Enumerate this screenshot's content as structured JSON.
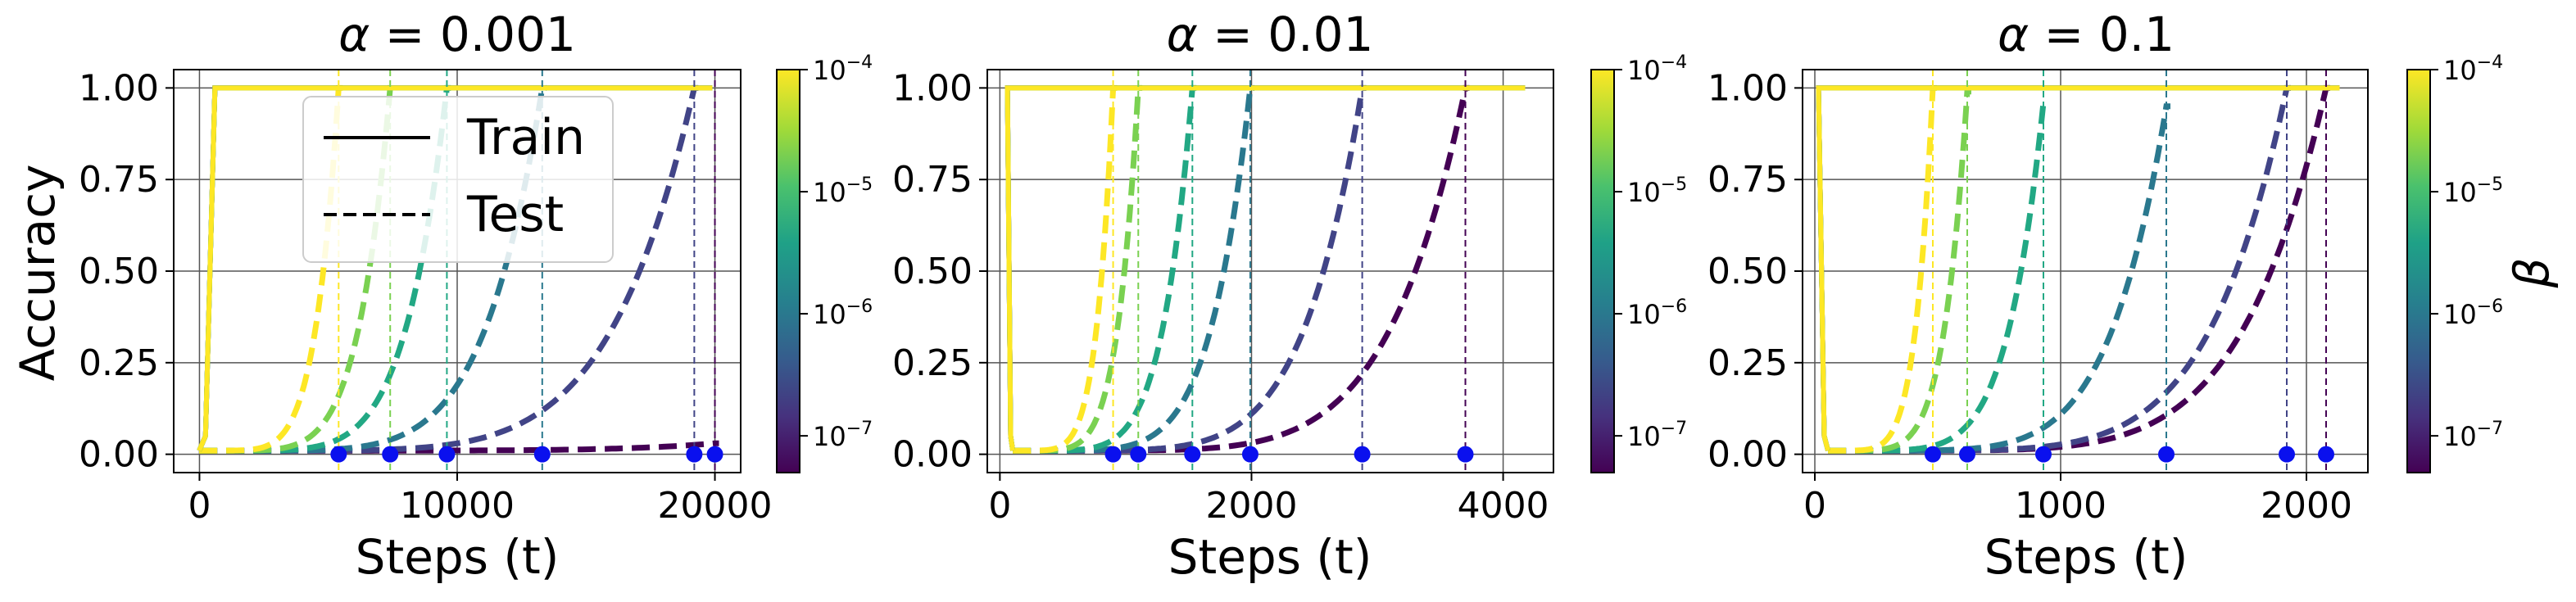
{
  "chart_data": {
    "type": "line",
    "ylabel": "Accuracy",
    "xlabel": "Steps (t)",
    "shared_colorbar_label": "β",
    "legend": {
      "placement": "top-left of first panel",
      "entries": [
        {
          "label": "Train",
          "style": "solid"
        },
        {
          "label": "Test",
          "style": "dashed"
        }
      ]
    },
    "color_scale": {
      "variable": "β",
      "colormap": "viridis",
      "scale": "log",
      "ticks": [
        {
          "base": "10",
          "exp": "−4",
          "value": 0.0001
        },
        {
          "base": "10",
          "exp": "−5",
          "value": 1e-05
        },
        {
          "base": "10",
          "exp": "−6",
          "value": 1e-06
        },
        {
          "base": "10",
          "exp": "−7",
          "value": 1e-07
        }
      ]
    },
    "panels": [
      {
        "title": "α = 0.001",
        "title_var": "α",
        "title_val": "0.001",
        "xlim": [
          -1000,
          21000
        ],
        "ylim": [
          -0.05,
          1.05
        ],
        "xticks": [
          0,
          10000,
          20000
        ],
        "xtick_labels": [
          "0",
          "10000",
          "20000"
        ],
        "yticks": [
          0,
          0.25,
          0.5,
          0.75,
          1.0
        ],
        "ytick_labels": [
          "0.00",
          "0.25",
          "0.50",
          "0.75",
          "1.00"
        ],
        "grid": true,
        "series": [
          {
            "beta": 0.0001,
            "color": "#fde725",
            "train_rise": 600,
            "test_rise": 5400,
            "test_final": 1.0
          },
          {
            "beta": 3e-05,
            "color": "#7ad151",
            "train_rise": 600,
            "test_rise": 7400,
            "test_final": 1.0
          },
          {
            "beta": 1e-05,
            "color": "#22a884",
            "train_rise": 600,
            "test_rise": 9600,
            "test_final": 1.0
          },
          {
            "beta": 3e-06,
            "color": "#2a788e",
            "train_rise": 600,
            "test_rise": 13300,
            "test_final": 1.0
          },
          {
            "beta": 1e-06,
            "color": "#414487",
            "train_rise": 600,
            "test_rise": 19200,
            "test_final": 1.0
          },
          {
            "beta": 3e-07,
            "color": "#440154",
            "train_rise": 600,
            "test_rise": 20000,
            "test_final": 0.03
          }
        ],
        "grok_steps": [
          5400,
          7400,
          9600,
          13300,
          19200,
          20000
        ]
      },
      {
        "title": "α = 0.01",
        "title_var": "α",
        "title_val": "0.01",
        "xlim": [
          -100,
          4400
        ],
        "ylim": [
          -0.05,
          1.05
        ],
        "xticks": [
          0,
          2000,
          4000
        ],
        "xtick_labels": [
          "0",
          "2000",
          "4000"
        ],
        "yticks": [
          0,
          0.25,
          0.5,
          0.75,
          1.0
        ],
        "ytick_labels": [
          "0.00",
          "0.25",
          "0.50",
          "0.75",
          "1.00"
        ],
        "grid": true,
        "series": [
          {
            "beta": 0.0001,
            "color": "#fde725",
            "train_rise": 60,
            "test_rise": 900,
            "test_final": 1.0
          },
          {
            "beta": 3e-05,
            "color": "#7ad151",
            "train_rise": 60,
            "test_rise": 1100,
            "test_final": 1.0
          },
          {
            "beta": 1e-05,
            "color": "#22a884",
            "train_rise": 60,
            "test_rise": 1530,
            "test_final": 1.0
          },
          {
            "beta": 3e-06,
            "color": "#2a788e",
            "train_rise": 60,
            "test_rise": 1990,
            "test_final": 1.0
          },
          {
            "beta": 1e-06,
            "color": "#414487",
            "train_rise": 60,
            "test_rise": 2880,
            "test_final": 1.0
          },
          {
            "beta": 3e-07,
            "color": "#440154",
            "train_rise": 60,
            "test_rise": 3700,
            "test_final": 1.0
          }
        ],
        "grok_steps": [
          900,
          1100,
          1530,
          1990,
          2880,
          3700
        ]
      },
      {
        "title": "α = 0.1",
        "title_var": "α",
        "title_val": "0.1",
        "xlim": [
          -50,
          2250
        ],
        "ylim": [
          -0.05,
          1.05
        ],
        "xticks": [
          0,
          1000,
          2000
        ],
        "xtick_labels": [
          "0",
          "1000",
          "2000"
        ],
        "yticks": [
          0,
          0.25,
          0.5,
          0.75,
          1.0
        ],
        "ytick_labels": [
          "0.00",
          "0.25",
          "0.50",
          "0.75",
          "1.00"
        ],
        "grid": true,
        "series": [
          {
            "beta": 0.0001,
            "color": "#fde725",
            "train_rise": 15,
            "test_rise": 480,
            "test_final": 1.0
          },
          {
            "beta": 3e-05,
            "color": "#7ad151",
            "train_rise": 15,
            "test_rise": 620,
            "test_final": 0.99
          },
          {
            "beta": 1e-05,
            "color": "#22a884",
            "train_rise": 15,
            "test_rise": 930,
            "test_final": 0.96
          },
          {
            "beta": 3e-06,
            "color": "#2a788e",
            "train_rise": 15,
            "test_rise": 1430,
            "test_final": 0.95
          },
          {
            "beta": 1e-06,
            "color": "#414487",
            "train_rise": 15,
            "test_rise": 1920,
            "test_final": 1.0
          },
          {
            "beta": 3e-07,
            "color": "#440154",
            "train_rise": 15,
            "test_rise": 2080,
            "test_final": 1.0
          }
        ],
        "grok_steps": [
          480,
          620,
          930,
          1430,
          1920,
          2080
        ]
      }
    ]
  }
}
